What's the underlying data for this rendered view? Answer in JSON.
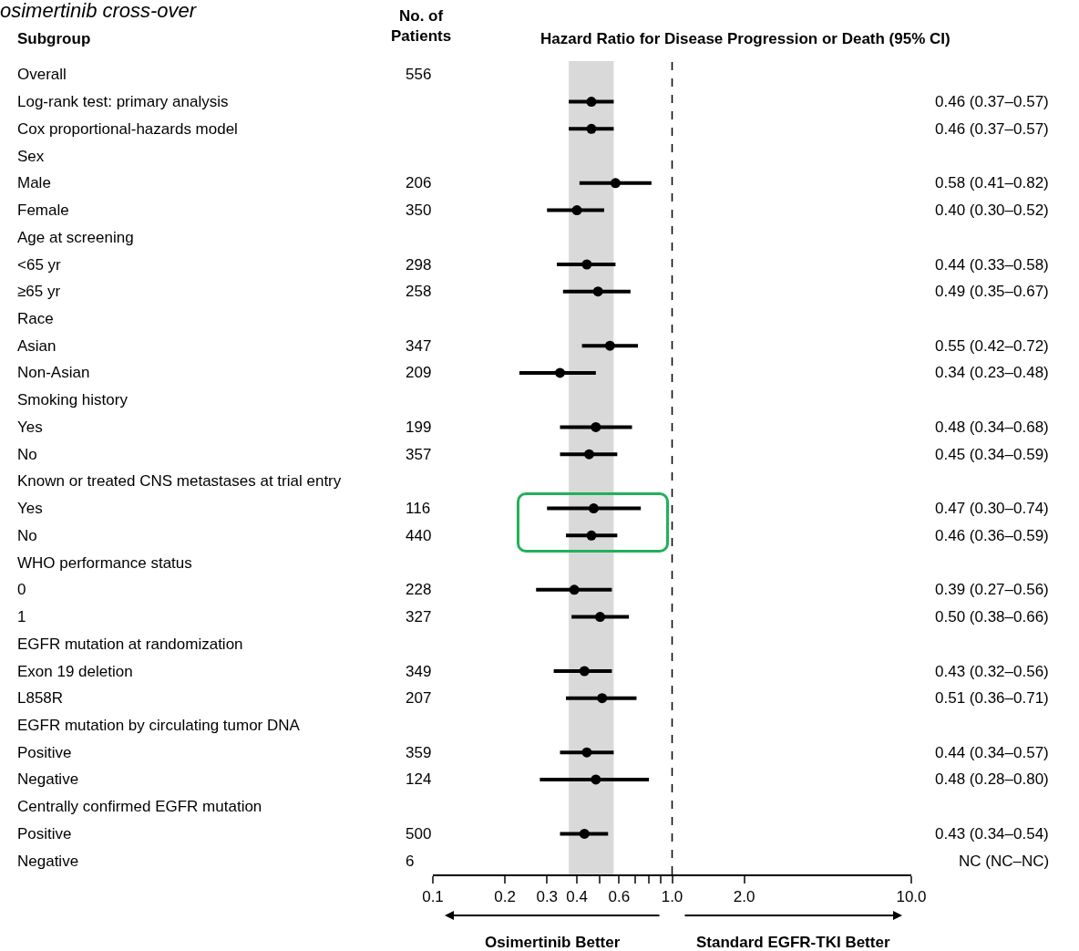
{
  "chart_data": {
    "type": "scatter",
    "orientation": "horizontal",
    "title": "osimertinib cross-over",
    "categories": [
      "Overall",
      "Log-rank test: primary analysis",
      "Cox proportional-hazards model",
      "Sex",
      "Male",
      "Female",
      "Age at screening",
      "<65 yr",
      "≥65 yr",
      "Race",
      "Asian",
      "Non-Asian",
      "Smoking history",
      "Yes",
      "No",
      "Known or treated CNS metastases at trial entry",
      "Yes",
      "No",
      "WHO performance status",
      "0",
      "1",
      "EGFR mutation at randomization",
      "Exon 19 deletion",
      "L858R",
      "EGFR mutation by circulating tumor DNA",
      "Positive",
      "Negative",
      "Centrally confirmed EGFR mutation",
      "Positive",
      "Negative"
    ],
    "series": [
      {
        "color": "#000000",
        "values": [
          null,
          0.46,
          0.46,
          null,
          0.58,
          0.4,
          null,
          0.44,
          0.49,
          null,
          0.55,
          0.34,
          null,
          0.48,
          0.45,
          null,
          0.47,
          0.46,
          null,
          0.39,
          0.5,
          null,
          0.43,
          0.51,
          null,
          0.44,
          0.48,
          null,
          0.43,
          null
        ],
        "errors": [
          null,
          [
            0.37,
            0.57
          ],
          [
            0.37,
            0.57
          ],
          null,
          [
            0.41,
            0.82
          ],
          [
            0.3,
            0.52
          ],
          null,
          [
            0.33,
            0.58
          ],
          [
            0.35,
            0.67
          ],
          null,
          [
            0.42,
            0.72
          ],
          [
            0.23,
            0.48
          ],
          null,
          [
            0.34,
            0.68
          ],
          [
            0.34,
            0.59
          ],
          null,
          [
            0.3,
            0.74
          ],
          [
            0.36,
            0.59
          ],
          null,
          [
            0.27,
            0.56
          ],
          [
            0.38,
            0.66
          ],
          null,
          [
            0.32,
            0.56
          ],
          [
            0.36,
            0.71
          ],
          null,
          [
            0.34,
            0.57
          ],
          [
            0.28,
            0.8
          ],
          null,
          [
            0.34,
            0.54
          ],
          null
        ],
        "value_labels": [
          null,
          "0.46 (0.37–0.57)",
          "0.46 (0.37–0.57)",
          null,
          "0.58 (0.41–0.82)",
          "0.40 (0.30–0.52)",
          null,
          "0.44 (0.33–0.58)",
          "0.49 (0.35–0.67)",
          null,
          "0.55 (0.42–0.72)",
          "0.34 (0.23–0.48)",
          null,
          "0.48 (0.34–0.68)",
          "0.45 (0.34–0.59)",
          null,
          "0.47 (0.30–0.74)",
          "0.46 (0.36–0.59)",
          null,
          "0.39 (0.27–0.56)",
          "0.50 (0.38–0.66)",
          null,
          "0.43 (0.32–0.56)",
          "0.51 (0.36–0.71)",
          null,
          "0.44 (0.34–0.57)",
          "0.48 (0.28–0.80)",
          null,
          "0.43 (0.34–0.54)",
          "NC (NC–NC)"
        ]
      },
      {
        "color": "#000000",
        "values": [
          null,
          null,
          null,
          null,
          null,
          null,
          null,
          null,
          null,
          null,
          null,
          null,
          null,
          null,
          null,
          null,
          null,
          null,
          null,
          null,
          null,
          null,
          null,
          null,
          null,
          null,
          null,
          null,
          null,
          null
        ],
        "value_labels": [
          "556",
          null,
          null,
          null,
          "206",
          "350",
          null,
          "298",
          "258",
          null,
          "347",
          "209",
          null,
          "199",
          "357",
          null,
          "116",
          "440",
          null,
          "228",
          "327",
          null,
          "349",
          "207",
          null,
          "359",
          "124",
          null,
          "500",
          "6"
        ]
      }
    ],
    "log": "x",
    "xlim": [
      0.1,
      10
    ],
    "xticks": [
      0.1,
      0.2,
      0.3,
      0.4,
      {
        "value": 0.5,
        "label": null
      },
      0.6,
      {
        "value": 0.7,
        "label": null
      },
      {
        "value": 0.8,
        "label": null
      },
      {
        "value": 0.9,
        "label": null
      },
      {
        "value": 1,
        "label": "1.0"
      },
      {
        "value": 2,
        "label": "2.0"
      },
      {
        "value": 10,
        "label": "10.0"
      }
    ],
    "tick_labels": "x",
    "marker": "circle",
    "ref_lines": [
      {
        "axis": "x",
        "value": 1,
        "line_style": "dashed",
        "color": "#000000"
      }
    ],
    "bands": [
      {
        "axis": "x",
        "from": 0.37,
        "to": 0.57,
        "color": "#d9d9d9"
      }
    ],
    "annotations": [
      "Subgroup",
      "No. of\nPatients",
      "Hazard Ratio for Disease Progression or Death (95% CI)",
      "Osimertinib Better",
      "Standard EGFR-TKI Better"
    ]
  }
}
